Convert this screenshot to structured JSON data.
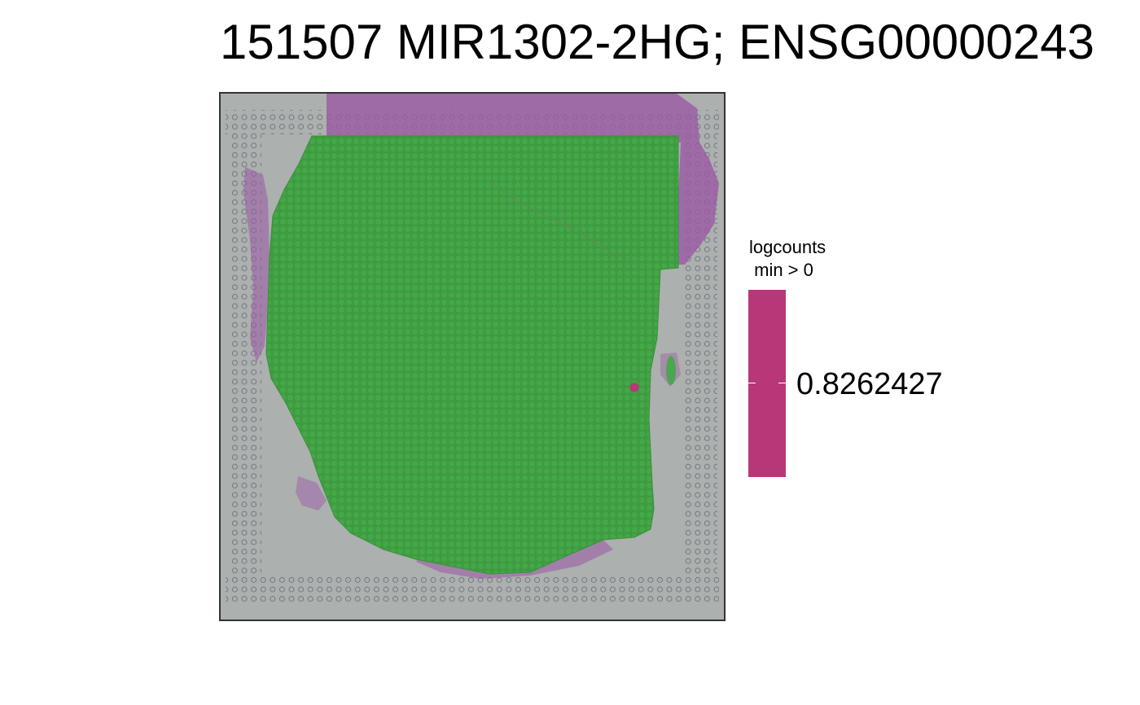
{
  "title": "151507 MIR1302-2HG; ENSG00000243",
  "legend": {
    "title_line1": "logcounts",
    "title_line2": " min > 0",
    "value_label": "0.8262427"
  },
  "colors": {
    "expressed_spot": "#b73779",
    "non_expressed_spot": "#3aa13c",
    "tissue_stain": "#9b5aa6",
    "slide_background": "#a8acab",
    "panel_border": "#333333"
  },
  "image_content": {
    "description_type": "spatial transcriptomics tissue section with gene expression spots",
    "expressed_spot_count": 1
  }
}
